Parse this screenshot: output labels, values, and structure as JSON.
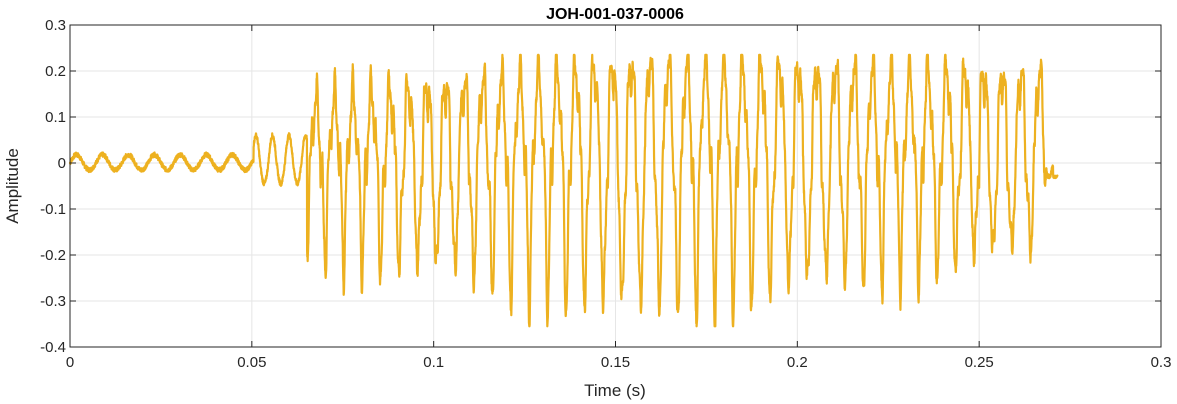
{
  "chart_data": {
    "type": "line",
    "title": "JOH-001-037-0006",
    "xlabel": "Time (s)",
    "ylabel": "Amplitude",
    "xlim": [
      0,
      0.3
    ],
    "ylim": [
      -0.4,
      0.3
    ],
    "x_ticks": [
      0,
      0.05,
      0.1,
      0.15,
      0.2,
      0.25,
      0.3
    ],
    "x_tick_labels": [
      "0",
      "0.05",
      "0.1",
      "0.15",
      "0.2",
      "0.25",
      "0.3"
    ],
    "y_ticks": [
      -0.4,
      -0.3,
      -0.2,
      -0.1,
      0,
      0.1,
      0.2,
      0.3
    ],
    "y_tick_labels": [
      "-0.4",
      "-0.3",
      "-0.2",
      "-0.1",
      "0",
      "0.1",
      "0.2",
      "0.3"
    ],
    "grid": true,
    "legend": "none",
    "colors": {
      "line": "#EDB120",
      "grid": "#e6e6e6",
      "axis": "#262626"
    },
    "series": [
      {
        "x_start": 0,
        "x_end": 0.2715,
        "segments": [
          {
            "t0": 0.0,
            "t1": 0.0505,
            "freq": 140,
            "amp_pos": 0.018,
            "amp_neg": 0.015
          },
          {
            "t0": 0.0505,
            "t1": 0.0652,
            "freq": 220,
            "amp_pos": 0.06,
            "amp_neg": 0.045
          },
          {
            "t0": 0.0652,
            "t1": 0.2685,
            "freq": 196,
            "amp_pos_start": 0.13,
            "amp_pos_mid": 0.215,
            "amp_pos_end": 0.19,
            "amp_neg_start": 0.2,
            "amp_neg_mid": 0.34,
            "amp_neg_end": 0.2
          },
          {
            "t0": 0.2685,
            "t1": 0.2715,
            "freq": 196,
            "amp_pos": 0.02,
            "amp_neg": 0.03
          }
        ],
        "peak_max": 0.235,
        "trough_min": -0.355,
        "end_value": -0.03
      }
    ]
  }
}
